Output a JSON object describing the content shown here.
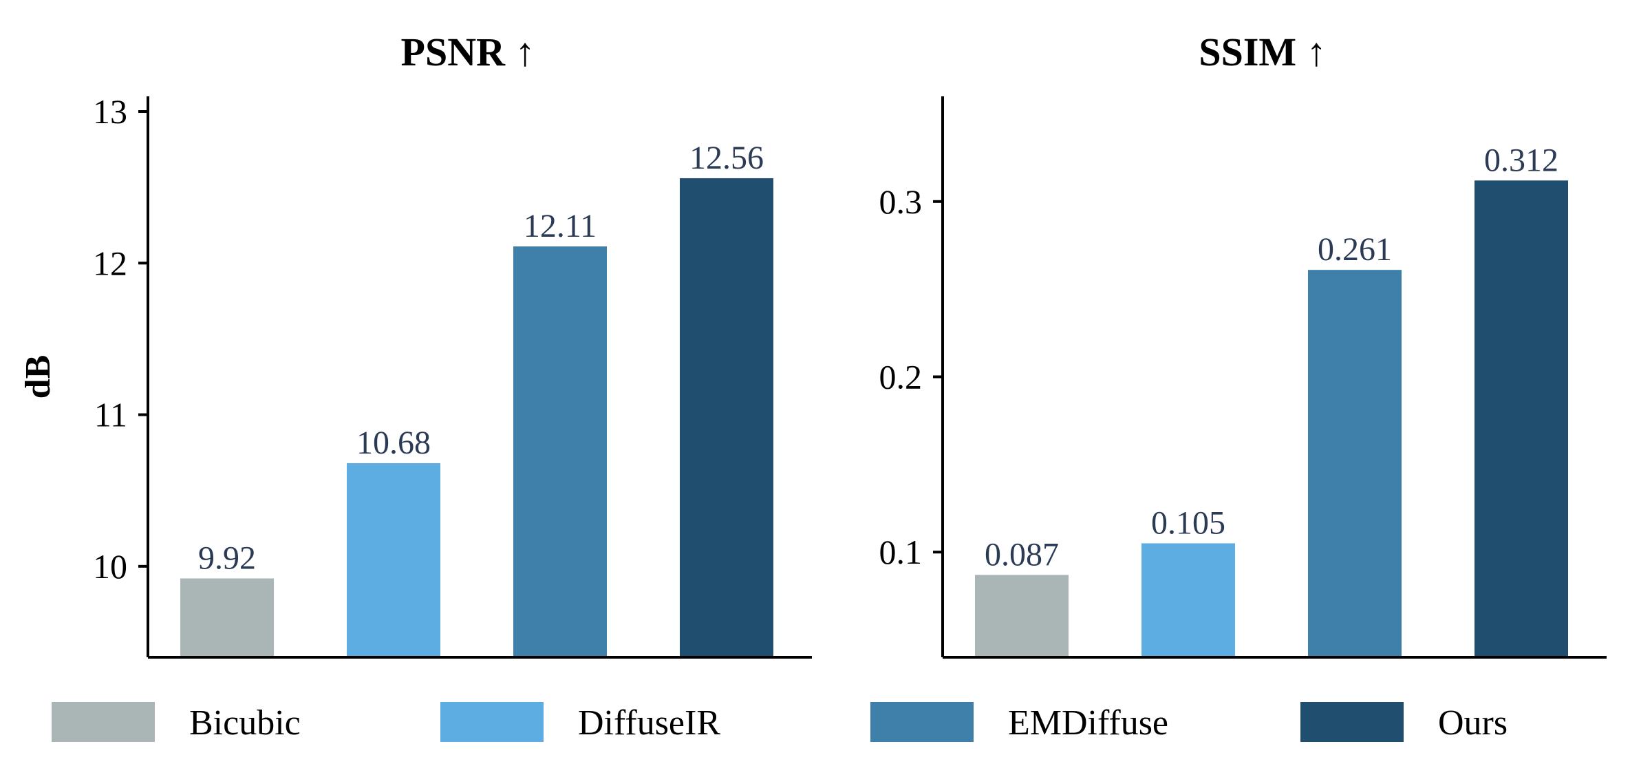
{
  "chart_data": [
    {
      "type": "bar",
      "title": "PSNR",
      "title_arrow": "↑",
      "ylabel": "dB",
      "xlabel": "",
      "categories": [
        "Bicubic",
        "DiffuseIR",
        "EMDiffuse",
        "Ours"
      ],
      "values": [
        9.92,
        10.68,
        12.11,
        12.56
      ],
      "value_labels": [
        "9.92",
        "10.68",
        "12.11",
        "12.56"
      ],
      "ylim": [
        9.4,
        13.1
      ],
      "yticks": [
        10,
        11,
        12,
        13
      ],
      "ytick_labels": [
        "10",
        "11",
        "12",
        "13"
      ],
      "grid": false
    },
    {
      "type": "bar",
      "title": "SSIM",
      "title_arrow": "↑",
      "ylabel": "",
      "xlabel": "",
      "categories": [
        "Bicubic",
        "DiffuseIR",
        "EMDiffuse",
        "Ours"
      ],
      "values": [
        0.087,
        0.105,
        0.261,
        0.312
      ],
      "value_labels": [
        "0.087",
        "0.105",
        "0.261",
        "0.312"
      ],
      "ylim": [
        0.04,
        0.36
      ],
      "yticks": [
        0.1,
        0.2,
        0.3
      ],
      "ytick_labels": [
        "0.1",
        "0.2",
        "0.3"
      ],
      "grid": false
    }
  ],
  "legend": {
    "placement": "bottom",
    "items": [
      {
        "label": "Bicubic",
        "color": "#aab6b6"
      },
      {
        "label": "DiffuseIR",
        "color": "#5dace2"
      },
      {
        "label": "EMDiffuse",
        "color": "#3e80aa"
      },
      {
        "label": "Ours",
        "color": "#1f4e6e"
      }
    ]
  }
}
